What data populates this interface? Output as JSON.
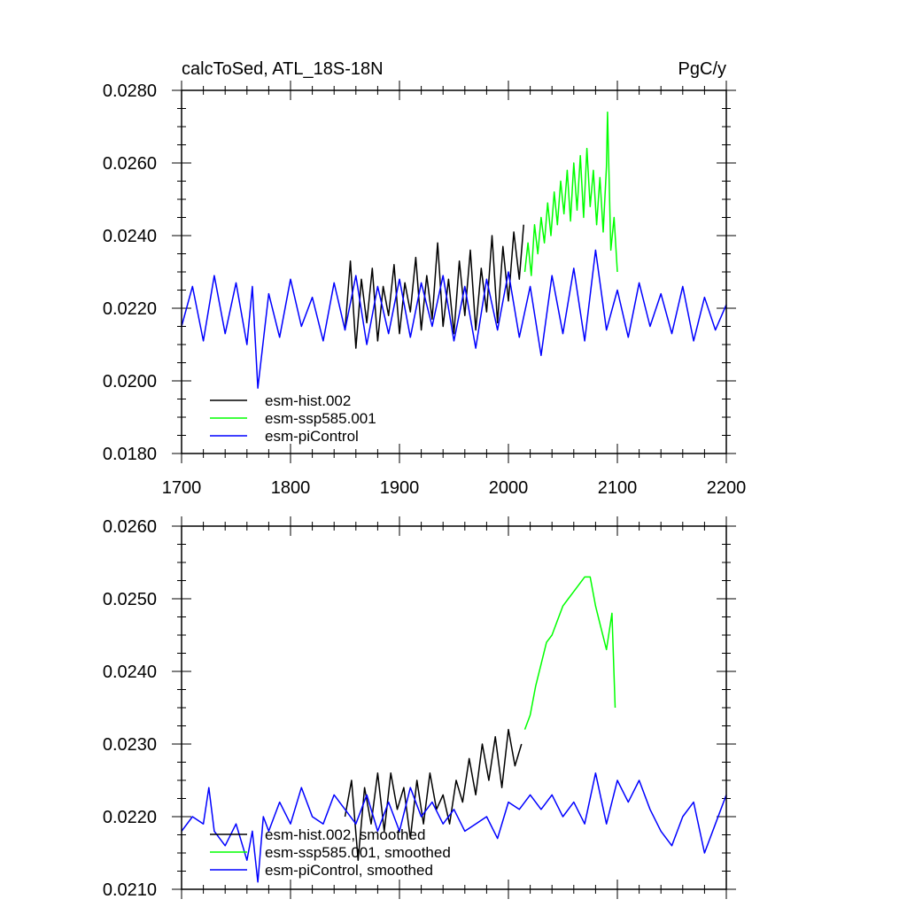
{
  "chart_data": [
    {
      "type": "line",
      "title": "calcToSed, ATL_18S-18N",
      "units": "PgC/y",
      "xlim": [
        1700,
        2200
      ],
      "ylim": [
        0.018,
        0.028
      ],
      "x_ticks": [
        1700,
        1800,
        1900,
        2000,
        2100,
        2200
      ],
      "x_tick_labels": [
        "1700",
        "1800",
        "1900",
        "2000",
        "2100",
        "2200"
      ],
      "y_ticks": [
        0.018,
        0.02,
        0.022,
        0.024,
        0.026,
        0.028
      ],
      "y_tick_labels": [
        "0.0180",
        "0.0200",
        "0.0220",
        "0.0240",
        "0.0260",
        "0.0280"
      ],
      "grid": false,
      "legend_position": "bottom-left",
      "series": [
        {
          "name": "esm-hist.002",
          "color": "#000000",
          "x": [
            1850,
            1855,
            1860,
            1865,
            1870,
            1875,
            1880,
            1885,
            1890,
            1895,
            1900,
            1905,
            1910,
            1915,
            1920,
            1925,
            1930,
            1935,
            1940,
            1945,
            1950,
            1955,
            1960,
            1965,
            1970,
            1975,
            1980,
            1985,
            1990,
            1995,
            2000,
            2005,
            2010,
            2014
          ],
          "y": [
            0.0214,
            0.0233,
            0.0209,
            0.0228,
            0.0216,
            0.0231,
            0.0211,
            0.0226,
            0.0218,
            0.0232,
            0.0213,
            0.0227,
            0.0219,
            0.0234,
            0.0214,
            0.0229,
            0.0217,
            0.0238,
            0.0215,
            0.0228,
            0.0213,
            0.0233,
            0.0218,
            0.0236,
            0.0214,
            0.0231,
            0.0219,
            0.024,
            0.0216,
            0.0237,
            0.0222,
            0.0241,
            0.0228,
            0.0243
          ]
        },
        {
          "name": "esm-ssp585.001",
          "color": "#00ff00",
          "x": [
            2015,
            2018,
            2021,
            2024,
            2027,
            2030,
            2033,
            2036,
            2039,
            2042,
            2045,
            2048,
            2051,
            2054,
            2057,
            2060,
            2063,
            2066,
            2069,
            2072,
            2075,
            2078,
            2081,
            2084,
            2087,
            2090,
            2091,
            2094,
            2097,
            2100
          ],
          "y": [
            0.023,
            0.0238,
            0.0229,
            0.0243,
            0.0235,
            0.0245,
            0.0238,
            0.0249,
            0.024,
            0.0252,
            0.0243,
            0.0255,
            0.0246,
            0.0258,
            0.0244,
            0.026,
            0.0247,
            0.0262,
            0.0245,
            0.0264,
            0.0248,
            0.0258,
            0.0243,
            0.0256,
            0.0241,
            0.0259,
            0.0274,
            0.0236,
            0.0245,
            0.023
          ]
        },
        {
          "name": "esm-piControl",
          "color": "#0000ff",
          "x": [
            1700,
            1710,
            1720,
            1730,
            1740,
            1750,
            1760,
            1765,
            1770,
            1780,
            1790,
            1800,
            1810,
            1820,
            1830,
            1840,
            1850,
            1860,
            1870,
            1880,
            1890,
            1900,
            1910,
            1920,
            1930,
            1940,
            1950,
            1960,
            1970,
            1980,
            1990,
            2000,
            2010,
            2020,
            2030,
            2040,
            2050,
            2060,
            2070,
            2080,
            2090,
            2100,
            2110,
            2120,
            2130,
            2140,
            2150,
            2160,
            2170,
            2180,
            2190,
            2200
          ],
          "y": [
            0.0215,
            0.0226,
            0.0211,
            0.0229,
            0.0213,
            0.0227,
            0.021,
            0.0226,
            0.0198,
            0.0224,
            0.0212,
            0.0228,
            0.0215,
            0.0223,
            0.0211,
            0.0227,
            0.0214,
            0.0229,
            0.021,
            0.0226,
            0.0213,
            0.0228,
            0.0212,
            0.0227,
            0.0215,
            0.0229,
            0.0211,
            0.0226,
            0.0209,
            0.0228,
            0.0214,
            0.023,
            0.0212,
            0.0226,
            0.0207,
            0.0229,
            0.0213,
            0.0231,
            0.0211,
            0.0236,
            0.0214,
            0.0225,
            0.0212,
            0.0227,
            0.0215,
            0.0224,
            0.0213,
            0.0226,
            0.0211,
            0.0223,
            0.0214,
            0.0221
          ]
        }
      ]
    },
    {
      "type": "line",
      "title": "",
      "xlim": [
        1700,
        2200
      ],
      "ylim": [
        0.021,
        0.026
      ],
      "x_ticks": [
        1700,
        1800,
        1900,
        2000,
        2100,
        2200
      ],
      "y_ticks": [
        0.021,
        0.022,
        0.023,
        0.024,
        0.025,
        0.026
      ],
      "y_tick_labels": [
        "0.0210",
        "0.0220",
        "0.0230",
        "0.0240",
        "0.0250",
        "0.0260"
      ],
      "grid": false,
      "legend_position": "bottom-left",
      "series": [
        {
          "name": "esm-hist.002, smoothed",
          "color": "#000000",
          "x": [
            1850,
            1856,
            1862,
            1868,
            1874,
            1880,
            1886,
            1892,
            1898,
            1904,
            1910,
            1916,
            1922,
            1928,
            1934,
            1940,
            1946,
            1952,
            1958,
            1964,
            1970,
            1976,
            1982,
            1988,
            1994,
            2000,
            2006,
            2012
          ],
          "y": [
            0.022,
            0.0225,
            0.0214,
            0.0224,
            0.0219,
            0.0226,
            0.0218,
            0.0226,
            0.0221,
            0.0224,
            0.0217,
            0.0225,
            0.0219,
            0.0226,
            0.0221,
            0.0223,
            0.0219,
            0.0225,
            0.0222,
            0.0228,
            0.0223,
            0.023,
            0.0225,
            0.0231,
            0.0224,
            0.0232,
            0.0227,
            0.023
          ]
        },
        {
          "name": "esm-ssp585.001, smoothed",
          "color": "#00ff00",
          "x": [
            2015,
            2020,
            2025,
            2030,
            2035,
            2040,
            2045,
            2050,
            2055,
            2060,
            2065,
            2070,
            2075,
            2080,
            2085,
            2090,
            2095,
            2098
          ],
          "y": [
            0.0232,
            0.0234,
            0.0238,
            0.0241,
            0.0244,
            0.0245,
            0.0247,
            0.0249,
            0.025,
            0.0251,
            0.0252,
            0.0253,
            0.0253,
            0.0249,
            0.0246,
            0.0243,
            0.0248,
            0.0235
          ]
        },
        {
          "name": "esm-piControl, smoothed",
          "color": "#0000ff",
          "x": [
            1700,
            1710,
            1720,
            1725,
            1730,
            1740,
            1750,
            1760,
            1765,
            1770,
            1775,
            1780,
            1790,
            1800,
            1810,
            1820,
            1830,
            1840,
            1850,
            1860,
            1870,
            1880,
            1890,
            1900,
            1910,
            1920,
            1930,
            1940,
            1950,
            1960,
            1970,
            1980,
            1990,
            2000,
            2010,
            2020,
            2030,
            2040,
            2050,
            2060,
            2070,
            2080,
            2090,
            2100,
            2110,
            2120,
            2130,
            2140,
            2150,
            2160,
            2170,
            2180,
            2190,
            2200
          ],
          "y": [
            0.0218,
            0.022,
            0.0219,
            0.0224,
            0.0218,
            0.0216,
            0.0219,
            0.0214,
            0.0218,
            0.0211,
            0.022,
            0.0218,
            0.0222,
            0.0219,
            0.0224,
            0.022,
            0.0219,
            0.0223,
            0.0221,
            0.0219,
            0.0223,
            0.0218,
            0.0222,
            0.0218,
            0.0224,
            0.022,
            0.0222,
            0.0219,
            0.0221,
            0.0218,
            0.0219,
            0.022,
            0.0217,
            0.0222,
            0.0221,
            0.0223,
            0.0221,
            0.0223,
            0.022,
            0.0222,
            0.0219,
            0.0226,
            0.0219,
            0.0225,
            0.0222,
            0.0225,
            0.0221,
            0.0218,
            0.0216,
            0.022,
            0.0222,
            0.0215,
            0.0219,
            0.0223
          ]
        }
      ]
    }
  ]
}
